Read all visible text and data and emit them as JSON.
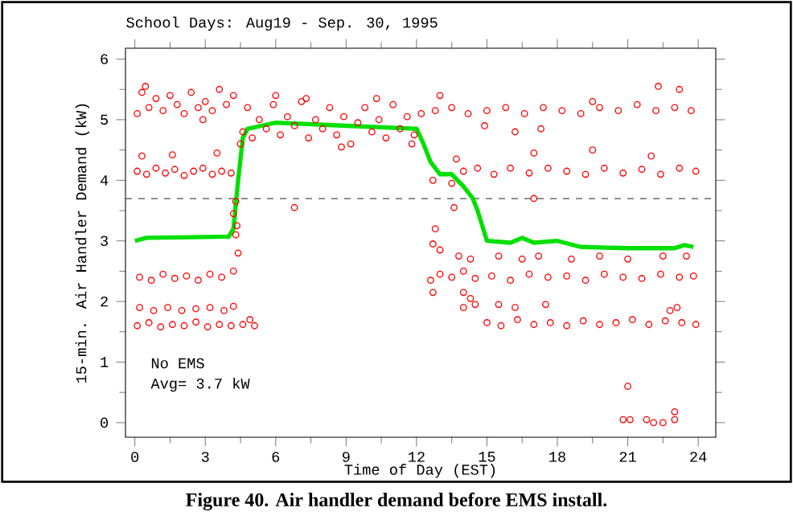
{
  "chart_data": {
    "type": "scatter",
    "title": "School Days: Aug19 - Sep. 30, 1995",
    "xlabel": "Time of Day (EST)",
    "ylabel": "15-min. Air Handler Demand (kW)",
    "annotations": [
      "No EMS",
      "Avg= 3.7 kW",
      "Figure 40.  Air handler demand before EMS install."
    ],
    "xlim": [
      -0.4,
      24.75
    ],
    "ylim": [
      -0.24,
      6.18
    ],
    "xticks": [
      0,
      3,
      6,
      9,
      12,
      15,
      18,
      21,
      24
    ],
    "yticks": [
      0,
      1,
      2,
      3,
      4,
      5,
      6
    ],
    "grid": false,
    "ref_lines": [
      {
        "axis": "y",
        "value": 3.7,
        "color": "#000000",
        "line_style": "dashed"
      }
    ],
    "series": [
      {
        "type": "scatter",
        "color": "#ff0000",
        "marker": "circle",
        "x": [
          0.1,
          0.3,
          0.6,
          0.9,
          1.2,
          1.5,
          1.8,
          2.1,
          2.4,
          2.7,
          3.0,
          3.3,
          3.6,
          3.9,
          4.2,
          0.45,
          2.9,
          0.1,
          0.5,
          0.9,
          1.3,
          1.7,
          2.1,
          2.5,
          2.9,
          3.3,
          3.7,
          4.1,
          0.3,
          1.6,
          3.5,
          0.2,
          0.7,
          1.2,
          1.7,
          2.2,
          2.7,
          3.2,
          3.7,
          4.2,
          0.2,
          0.8,
          1.4,
          2.0,
          2.6,
          3.2,
          3.8,
          4.2,
          0.1,
          0.6,
          1.1,
          1.6,
          2.1,
          2.6,
          3.1,
          3.6,
          4.1,
          4.6,
          5.1,
          4.9,
          4.3,
          4.4,
          4.35,
          4.2,
          4.3,
          4.5,
          6.8,
          4.6,
          4.8,
          5.0,
          5.3,
          5.6,
          5.9,
          6.2,
          6.5,
          6.8,
          7.1,
          7.4,
          7.7,
          8.0,
          8.3,
          8.6,
          8.9,
          9.2,
          9.5,
          9.8,
          10.1,
          10.4,
          10.7,
          11.0,
          11.3,
          11.6,
          11.9,
          12.2,
          6.0,
          7.3,
          10.3,
          8.8,
          11.8,
          12.8,
          13.5,
          14.2,
          15.0,
          15.8,
          16.6,
          17.4,
          18.2,
          19.0,
          19.8,
          20.6,
          21.4,
          22.2,
          23.0,
          23.7,
          13.0,
          14.9,
          16.2,
          17.3,
          22.3,
          23.2,
          19.5,
          14.0,
          14.6,
          15.3,
          16.0,
          16.8,
          17.6,
          18.4,
          19.2,
          20.0,
          20.8,
          21.6,
          22.4,
          23.2,
          23.9,
          13.7,
          17.0,
          19.5,
          22.0,
          12.7,
          13.6,
          13.5,
          17.0,
          12.6,
          13.0,
          13.5,
          14.0,
          14.5,
          15.2,
          16.0,
          16.8,
          17.6,
          18.4,
          19.2,
          20.0,
          20.8,
          21.6,
          22.4,
          23.2,
          23.8,
          12.8,
          12.7,
          13.0,
          14.3,
          13.8,
          15.5,
          16.5,
          17.2,
          18.6,
          19.8,
          21.0,
          22.5,
          23.5,
          12.7,
          14.0,
          14.3,
          14.5,
          14.0,
          15.5,
          16.2,
          17.5,
          15.0,
          15.6,
          16.3,
          17.0,
          17.7,
          18.4,
          19.1,
          19.8,
          20.5,
          21.2,
          21.9,
          22.6,
          23.3,
          23.9,
          22.8,
          23.1,
          20.8,
          21.0,
          21.1,
          21.8,
          22.1,
          22.5,
          23.0,
          23.0
        ],
        "values": [
          5.1,
          5.45,
          5.2,
          5.35,
          5.15,
          5.4,
          5.25,
          5.1,
          5.45,
          5.2,
          5.3,
          5.15,
          5.5,
          5.25,
          5.4,
          5.55,
          5.0,
          4.15,
          4.1,
          4.2,
          4.12,
          4.18,
          4.08,
          4.15,
          4.2,
          4.1,
          4.15,
          4.12,
          4.4,
          4.42,
          4.45,
          2.4,
          2.35,
          2.45,
          2.38,
          2.42,
          2.35,
          2.45,
          2.4,
          2.5,
          1.9,
          1.85,
          1.9,
          1.85,
          1.88,
          1.9,
          1.85,
          1.92,
          1.6,
          1.65,
          1.58,
          1.62,
          1.6,
          1.66,
          1.58,
          1.62,
          1.6,
          1.62,
          1.6,
          1.7,
          3.1,
          2.8,
          3.25,
          3.45,
          3.65,
          4.6,
          3.55,
          4.8,
          5.2,
          4.7,
          5.0,
          4.85,
          5.25,
          4.75,
          5.05,
          4.9,
          5.3,
          4.7,
          5.0,
          4.85,
          5.2,
          4.75,
          5.05,
          4.6,
          4.95,
          5.2,
          4.8,
          5.0,
          4.7,
          5.25,
          4.85,
          5.05,
          4.75,
          5.1,
          5.4,
          5.35,
          5.35,
          4.55,
          4.6,
          5.15,
          5.2,
          5.1,
          5.15,
          5.2,
          5.1,
          5.2,
          5.15,
          5.1,
          5.2,
          5.15,
          5.25,
          5.15,
          5.2,
          5.15,
          5.4,
          4.9,
          4.8,
          4.85,
          5.55,
          5.5,
          5.3,
          4.15,
          4.2,
          4.1,
          4.2,
          4.12,
          4.2,
          4.15,
          4.1,
          4.2,
          4.12,
          4.18,
          4.1,
          4.2,
          4.15,
          4.35,
          4.45,
          4.5,
          4.4,
          4.0,
          3.55,
          3.95,
          3.7,
          2.35,
          2.45,
          2.4,
          2.5,
          2.38,
          2.42,
          2.35,
          2.45,
          2.4,
          2.42,
          2.35,
          2.45,
          2.4,
          2.38,
          2.45,
          2.4,
          2.42,
          3.2,
          2.95,
          2.85,
          2.7,
          2.75,
          2.75,
          2.7,
          2.75,
          2.7,
          2.75,
          2.7,
          2.75,
          2.75,
          2.15,
          2.15,
          2.05,
          1.95,
          1.9,
          1.95,
          1.9,
          1.95,
          1.65,
          1.6,
          1.7,
          1.62,
          1.65,
          1.6,
          1.68,
          1.62,
          1.65,
          1.7,
          1.62,
          1.68,
          1.65,
          1.62,
          1.85,
          1.9,
          0.05,
          0.6,
          0.05,
          0.05,
          0.0,
          0.0,
          0.05,
          0.18
        ]
      },
      {
        "type": "line",
        "color": "#00e000",
        "marker": "none",
        "line_style": "solid",
        "x": [
          0,
          0.5,
          4.0,
          4.2,
          4.4,
          4.6,
          4.8,
          6,
          9,
          12,
          12.3,
          12.6,
          13,
          13.5,
          14,
          14.4,
          14.6,
          15,
          16,
          16.5,
          17,
          18,
          19,
          21,
          23,
          23.4,
          23.8
        ],
        "values": [
          3.0,
          3.05,
          3.07,
          3.2,
          4.0,
          4.7,
          4.85,
          4.95,
          4.9,
          4.85,
          4.6,
          4.3,
          4.1,
          4.1,
          3.9,
          3.7,
          3.5,
          3.0,
          2.97,
          3.05,
          2.97,
          3.0,
          2.9,
          2.88,
          2.88,
          2.93,
          2.9
        ]
      }
    ]
  }
}
